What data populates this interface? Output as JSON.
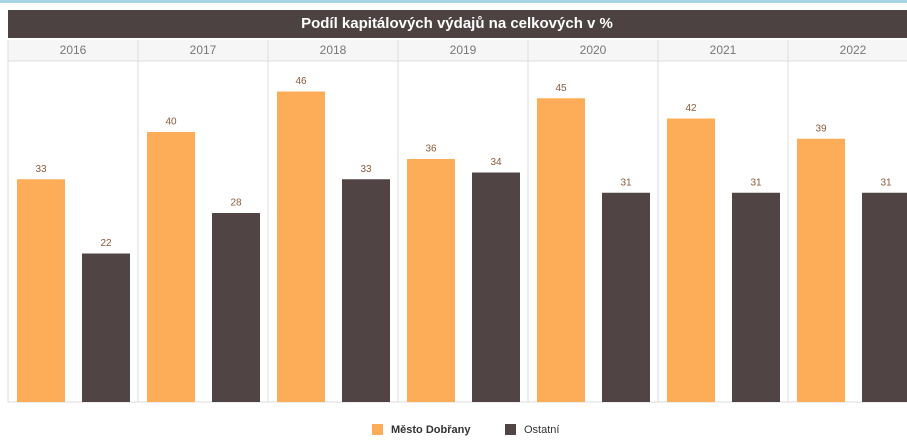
{
  "chart_data": {
    "type": "bar",
    "title": "Podíl kapitálových výdajů na celkových v %",
    "categories": [
      "2016",
      "2017",
      "2018",
      "2019",
      "2020",
      "2021",
      "2022"
    ],
    "series": [
      {
        "name": "Město Dobřany",
        "color": "#fdad57",
        "values": [
          33,
          40,
          46,
          36,
          45,
          42,
          39
        ]
      },
      {
        "name": "Ostatní",
        "color": "#504444",
        "values": [
          22,
          28,
          33,
          34,
          31,
          31,
          31
        ]
      }
    ],
    "legend": "bottom"
  }
}
